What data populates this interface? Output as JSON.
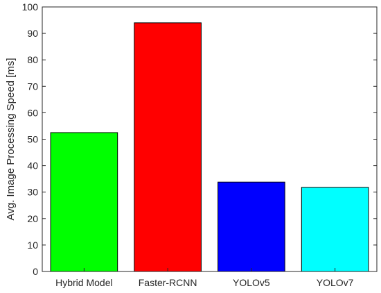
{
  "chart_data": {
    "type": "bar",
    "title": "",
    "xlabel": "",
    "ylabel": "Avg. Image Processing Speed [ms]",
    "ylim": [
      0,
      100
    ],
    "yticks": [
      0,
      10,
      20,
      30,
      40,
      50,
      60,
      70,
      80,
      90,
      100
    ],
    "categories": [
      "Hybrid Model",
      "Faster-RCNN",
      "YOLOv5",
      "YOLOv7"
    ],
    "values": [
      52.5,
      94,
      33.8,
      31.8
    ],
    "colors": [
      "#00ff00",
      "#ff0000",
      "#0000ff",
      "#00ffff"
    ],
    "grid": false,
    "legend": "none"
  }
}
